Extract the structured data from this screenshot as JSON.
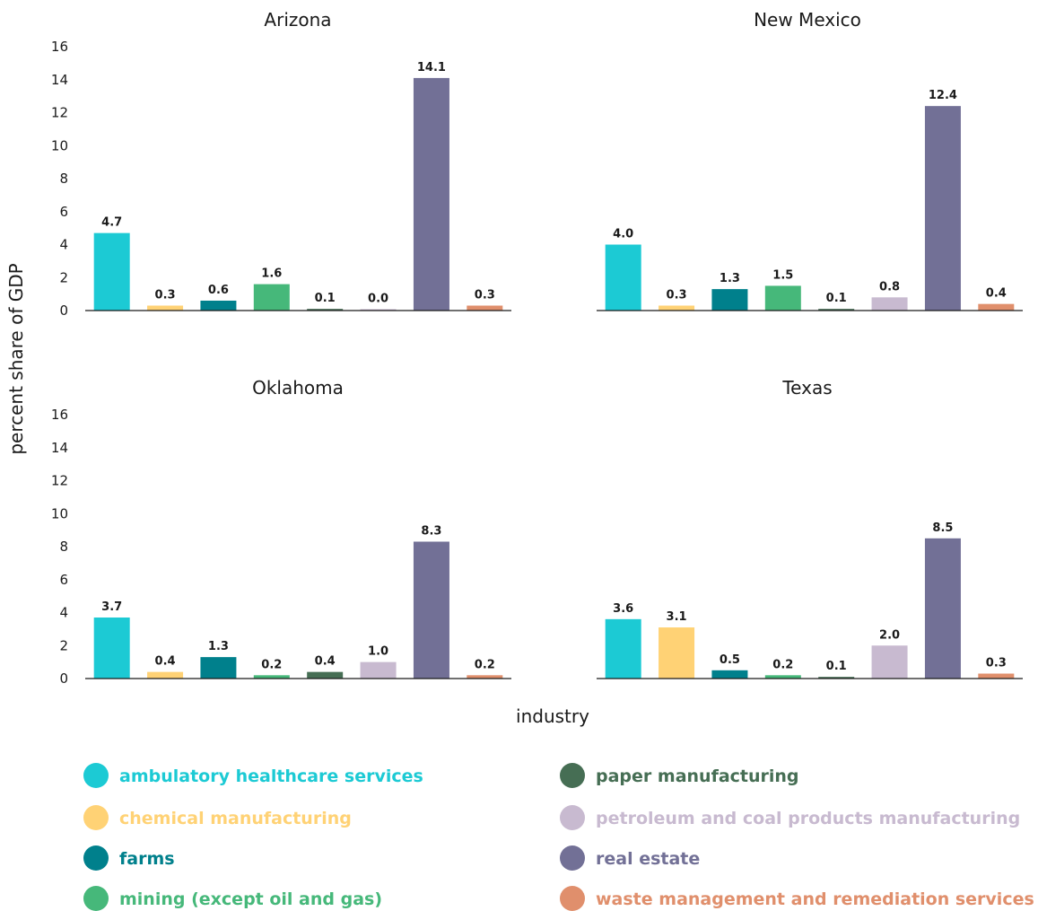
{
  "chart_data": {
    "type": "bar",
    "ylabel": "percent share of GDP",
    "xlabel": "industry",
    "ylim": [
      0,
      16
    ],
    "yticks": [
      0,
      2,
      4,
      6,
      8,
      10,
      12,
      14,
      16
    ],
    "grid": false,
    "legend_position": "bottom",
    "categories": [
      "ambulatory healthcare services",
      "chemical manufacturing",
      "farms",
      "mining (except oil and gas)",
      "paper manufacturing",
      "petroleum and coal products manufacturing",
      "real estate",
      "waste management and remediation services"
    ],
    "colors": [
      "#1ccad4",
      "#ffd275",
      "#00808c",
      "#46b87a",
      "#466e54",
      "#c8bad0",
      "#727096",
      "#e08f6c"
    ],
    "panels": [
      {
        "title": "Arizona",
        "values": [
          4.7,
          0.3,
          0.6,
          1.6,
          0.1,
          0.0,
          14.1,
          0.3
        ],
        "labels": [
          "4.7",
          "0.3",
          "0.6",
          "1.6",
          "0.1",
          "0.0",
          "14.1",
          "0.3"
        ]
      },
      {
        "title": "New Mexico",
        "values": [
          4.0,
          0.3,
          1.3,
          1.5,
          0.1,
          0.8,
          12.4,
          0.4
        ],
        "labels": [
          "4.0",
          "0.3",
          "1.3",
          "1.5",
          "0.1",
          "0.8",
          "12.4",
          "0.4"
        ]
      },
      {
        "title": "Oklahoma",
        "values": [
          3.7,
          0.4,
          1.3,
          0.2,
          0.4,
          1.0,
          8.3,
          0.2
        ],
        "labels": [
          "3.7",
          "0.4",
          "1.3",
          "0.2",
          "0.4",
          "1.0",
          "8.3",
          "0.2"
        ]
      },
      {
        "title": "Texas",
        "values": [
          3.6,
          3.1,
          0.5,
          0.2,
          0.1,
          2.0,
          8.5,
          0.3
        ],
        "labels": [
          "3.6",
          "3.1",
          "0.5",
          "0.2",
          "0.1",
          "2.0",
          "8.5",
          "0.3"
        ]
      }
    ]
  }
}
